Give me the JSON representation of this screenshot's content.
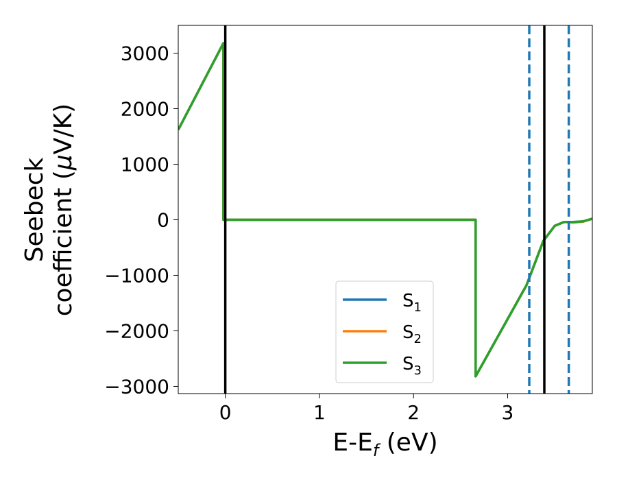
{
  "chart_data": {
    "type": "line",
    "xlabel": "E-E",
    "xlabel_sub": "f",
    "xlabel_unit": " (eV)",
    "ylabel_line1": "Seebeck",
    "ylabel_line2": "coefficient  (",
    "ylabel_mu": "μ",
    "ylabel_unit": "V/K)",
    "xlim": [
      -0.5,
      3.9
    ],
    "ylim": [
      -3130,
      3500
    ],
    "xticks": [
      0,
      1,
      2,
      3
    ],
    "xtick_labels": [
      "0",
      "1",
      "2",
      "3"
    ],
    "yticks": [
      3000,
      2000,
      1000,
      0,
      -1000,
      -2000,
      -3000
    ],
    "ytick_labels": [
      "3000",
      "2000",
      "1000",
      "0",
      "−1000",
      "−2000",
      "−3000"
    ],
    "series": [
      {
        "name": "S",
        "sub": "1",
        "color": "#1f77b4",
        "x": [
          -0.5,
          -0.02,
          -0.02,
          2.66,
          2.66,
          3.2,
          3.38,
          3.5,
          3.6,
          3.7,
          3.8,
          3.9
        ],
        "y": [
          1620,
          3180,
          0,
          0,
          -2820,
          -1180,
          -380,
          -110,
          -40,
          -40,
          -30,
          20
        ]
      },
      {
        "name": "S",
        "sub": "2",
        "color": "#ff7f0e",
        "x": [
          -0.5,
          -0.02,
          -0.02,
          2.66,
          2.66,
          3.2,
          3.38,
          3.5,
          3.6,
          3.7,
          3.8,
          3.9
        ],
        "y": [
          1620,
          3180,
          0,
          0,
          -2820,
          -1180,
          -380,
          -110,
          -40,
          -50,
          -35,
          20
        ]
      },
      {
        "name": "S",
        "sub": "3",
        "color": "#2ca02c",
        "x": [
          -0.5,
          -0.02,
          -0.02,
          2.66,
          2.66,
          3.2,
          3.38,
          3.5,
          3.6,
          3.7,
          3.8,
          3.9
        ],
        "y": [
          1620,
          3180,
          0,
          0,
          -2820,
          -1180,
          -380,
          -110,
          -40,
          -40,
          -30,
          20
        ]
      }
    ],
    "vlines": [
      {
        "x": 0,
        "style": "solid",
        "color": "#000000"
      },
      {
        "x": 3.39,
        "style": "solid",
        "color": "#000000"
      },
      {
        "x": 3.23,
        "style": "dashed",
        "color": "#1f77b4"
      },
      {
        "x": 3.65,
        "style": "dashed",
        "color": "#1f77b4"
      }
    ],
    "legend_position": "lower-center",
    "grid": false
  }
}
